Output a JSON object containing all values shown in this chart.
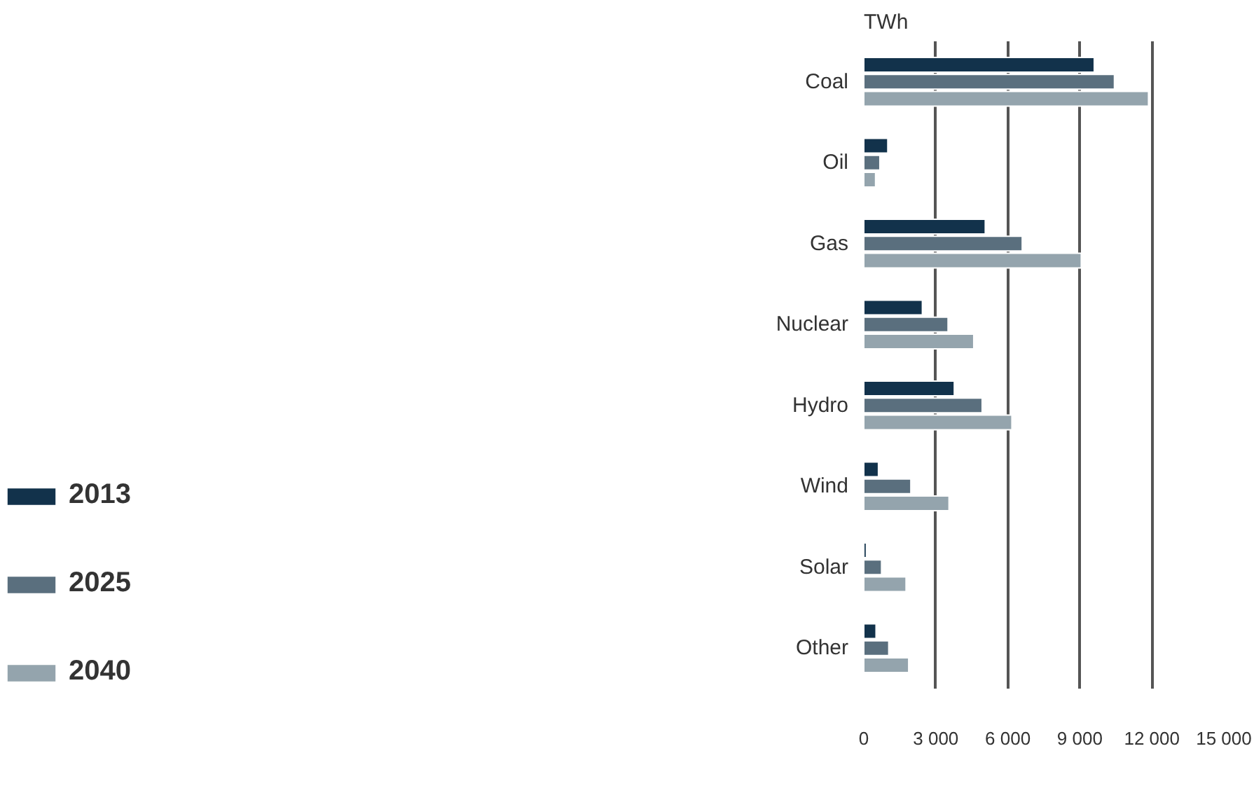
{
  "chart_data": {
    "type": "bar",
    "orientation": "horizontal",
    "xlabel": "TWh",
    "categories": [
      "Coal",
      "Oil",
      "Gas",
      "Nuclear",
      "Hydro",
      "Wind",
      "Solar",
      "Other"
    ],
    "series": [
      {
        "name": "2013",
        "color": "#12324b",
        "values": [
          9600,
          1000,
          5060,
          2440,
          3770,
          610,
          110,
          510
        ]
      },
      {
        "name": "2025",
        "color": "#5a6f7e",
        "values": [
          10440,
          670,
          6600,
          3510,
          4930,
          1960,
          740,
          1040
        ]
      },
      {
        "name": "2040",
        "color": "#94a4ad",
        "values": [
          11860,
          490,
          9060,
          4580,
          6170,
          3550,
          1760,
          1870
        ]
      }
    ],
    "xlim": [
      0,
      15000
    ],
    "xticks": [
      0,
      {
        "value": 3000,
        "label": "3 000"
      },
      {
        "value": 6000,
        "label": "6 000"
      },
      {
        "value": 9000,
        "label": "9 000"
      },
      {
        "value": 12000,
        "label": "12 000"
      },
      {
        "value": 15000,
        "label": "15 000"
      }
    ],
    "grid": "x",
    "legend": "bottom left"
  }
}
